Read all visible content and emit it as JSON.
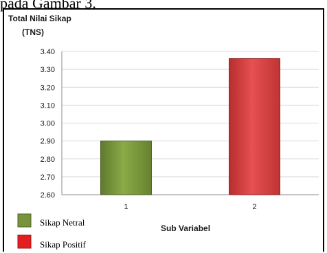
{
  "page_text": "pada Gambar 3.",
  "chart_data": {
    "type": "bar",
    "title_line1": "Total Nilai Sikap",
    "title_line2": "(TNS)",
    "xlabel": "Sub Variabel",
    "categories": [
      "1",
      "2"
    ],
    "values": [
      2.9,
      3.36
    ],
    "ylim": [
      2.6,
      3.4
    ],
    "yticks": [
      "2.60",
      "2.70",
      "2.80",
      "2.90",
      "3.00",
      "3.10",
      "3.20",
      "3.30",
      "3.40"
    ],
    "grid": true,
    "legend": [
      {
        "label": "Sikap Netral",
        "color": "#77933c"
      },
      {
        "label": "Sikap Positif",
        "color": "#e41e20"
      }
    ],
    "colors": {
      "bar1": "#77933c",
      "bar2": "#d93a3a",
      "grid": "#d9d9d9",
      "axis": "#8c8c8c"
    }
  }
}
